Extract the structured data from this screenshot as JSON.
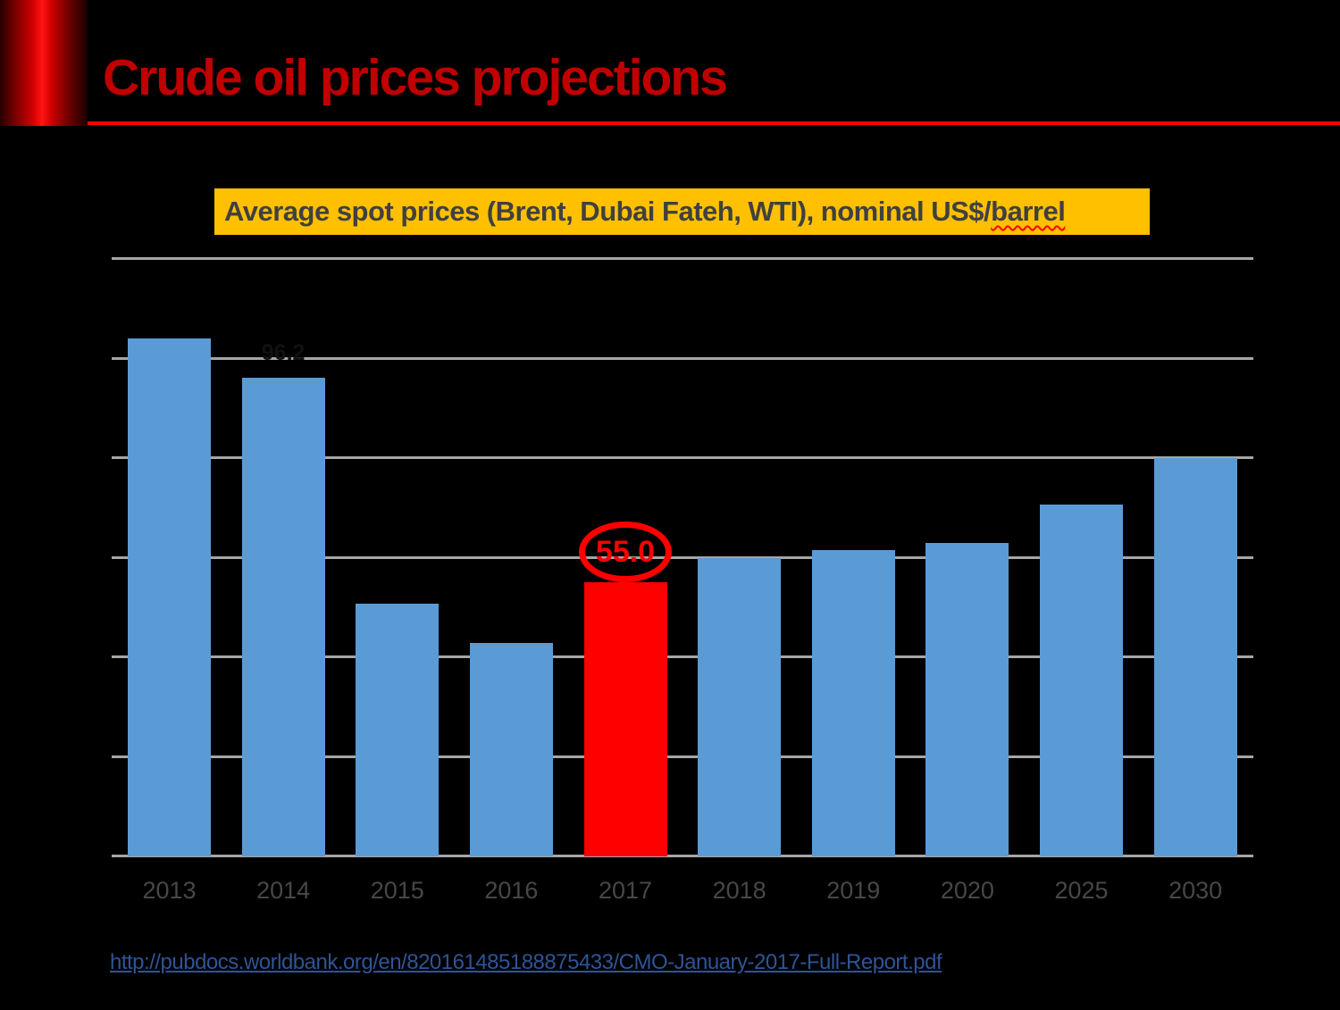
{
  "header": {
    "title": "Crude oil prices projections",
    "title_color": "#C00000",
    "rule_color": "#FF0000"
  },
  "subtitle": {
    "text_main": "Average spot prices (Brent, Dubai Fateh, WTI), nominal US$/",
    "text_misspelled_word": "barrel",
    "background": "#FFC000",
    "text_color": "#404040"
  },
  "chart_data": {
    "type": "bar",
    "title": "Average spot prices (Brent, Dubai Fateh, WTI), nominal US$/barrel",
    "categories": [
      "2013",
      "2014",
      "2015",
      "2016",
      "2017",
      "2018",
      "2019",
      "2020",
      "2025",
      "2030"
    ],
    "values": [
      104.1,
      96.2,
      50.8,
      42.8,
      55.0,
      60.0,
      61.5,
      62.9,
      70.7,
      80.0
    ],
    "xlabel": "",
    "ylabel": "",
    "ylim": [
      0,
      120
    ],
    "gridline_step": 20,
    "grid": true,
    "gridline_color": "#A6A6A6",
    "axis_label_color": "#474747",
    "bar_color_default": "#5B9BD5",
    "highlight_category": "2017",
    "highlight_color": "#FF0000",
    "legend": "none",
    "faint_label": {
      "category": "2014",
      "text": "96.2",
      "color": "#111111"
    },
    "annotation": {
      "category": "2017",
      "text": "55.0",
      "shape": "ellipse-outline",
      "color": "#FF0000"
    }
  },
  "footer": {
    "link_text": "http://pubdocs.worldbank.org/en/820161485188875433/CMO-January-2017-Full-Report.pdf",
    "link_color": "#2F5496"
  }
}
